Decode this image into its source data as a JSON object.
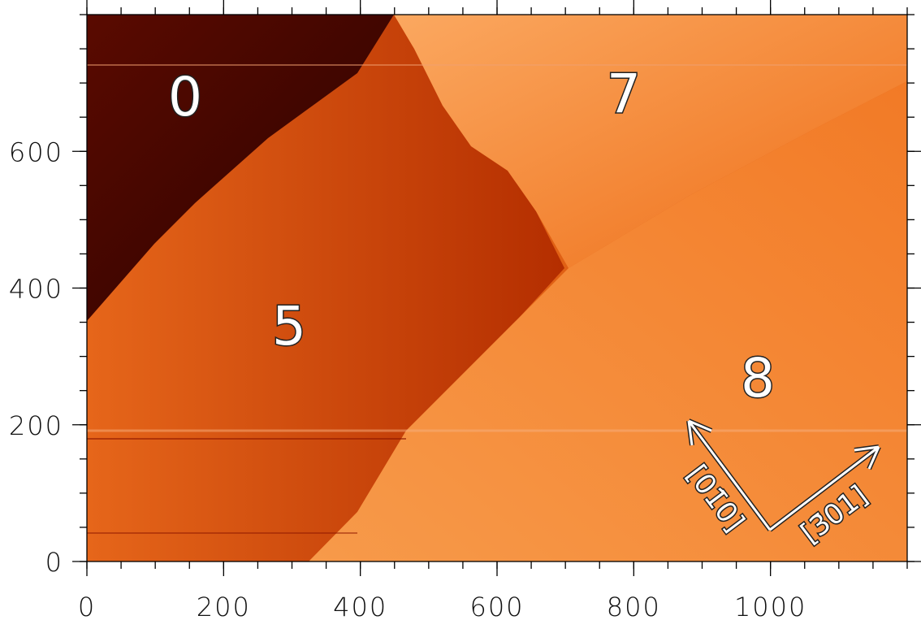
{
  "axes": {
    "xlim": [
      0,
      1200
    ],
    "ylim": [
      0,
      800
    ],
    "xticks": [
      0,
      200,
      400,
      600,
      800,
      1000
    ],
    "yticks": [
      0,
      200,
      400,
      600
    ]
  },
  "terraces": [
    "0",
    "5",
    "7",
    "8"
  ],
  "directions": [
    "[01̄0]",
    "[3̄01]"
  ]
}
